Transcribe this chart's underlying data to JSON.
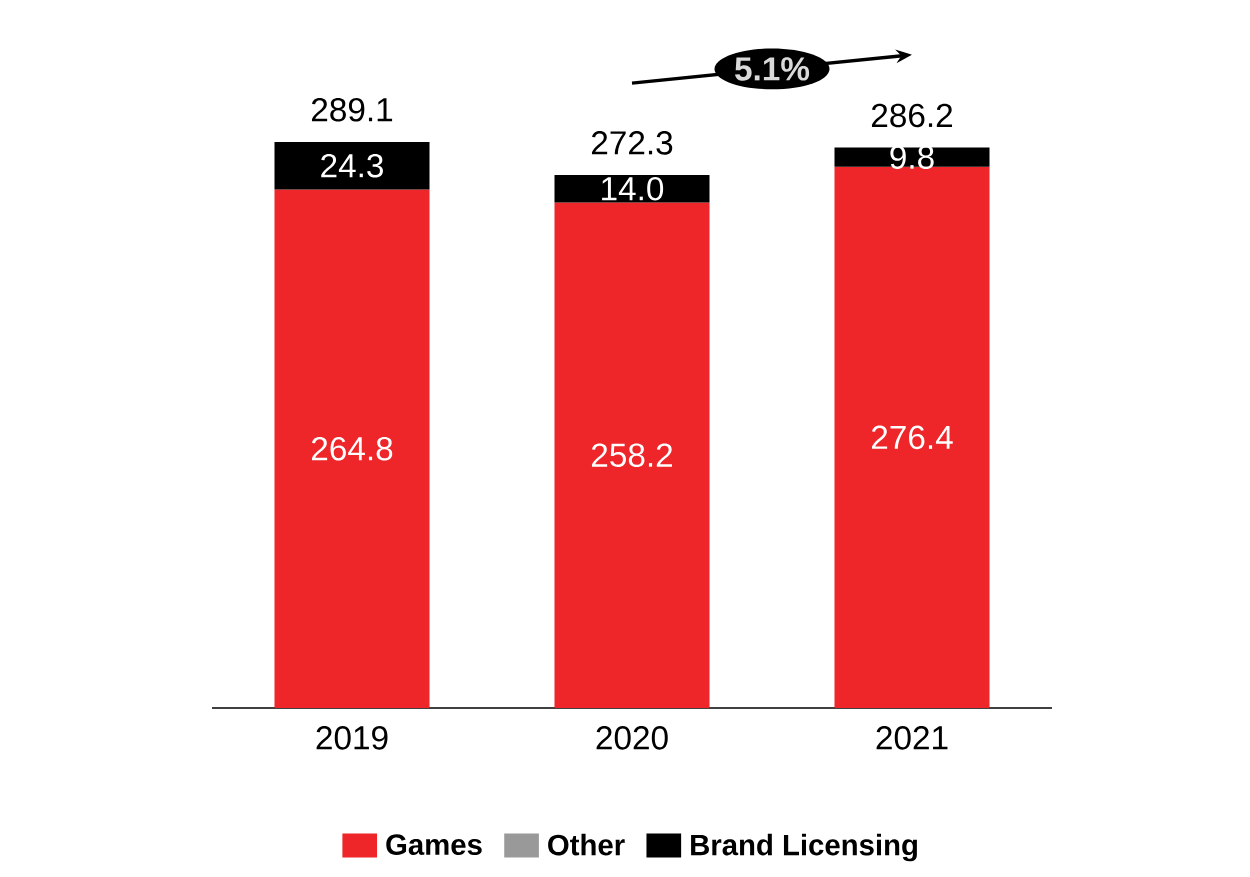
{
  "chart_data": {
    "type": "bar",
    "stacked": true,
    "categories": [
      "2019",
      "2020",
      "2021"
    ],
    "series": [
      {
        "name": "Games",
        "color": "#ee2529",
        "values": [
          264.8,
          258.2,
          276.4
        ],
        "value_labels": [
          "264.8",
          "258.2",
          "276.4"
        ]
      },
      {
        "name": "Other",
        "color": "#999999",
        "values": [
          null,
          null,
          null
        ]
      },
      {
        "name": "Brand Licensing",
        "color": "#000000",
        "values": [
          24.3,
          14.0,
          9.8
        ],
        "value_labels": [
          "24.3",
          "14.0",
          "9.8"
        ]
      }
    ],
    "totals": [
      "289.1",
      "272.3",
      "286.2"
    ],
    "annotations": [
      "5.1%"
    ],
    "legend": "bottom"
  }
}
